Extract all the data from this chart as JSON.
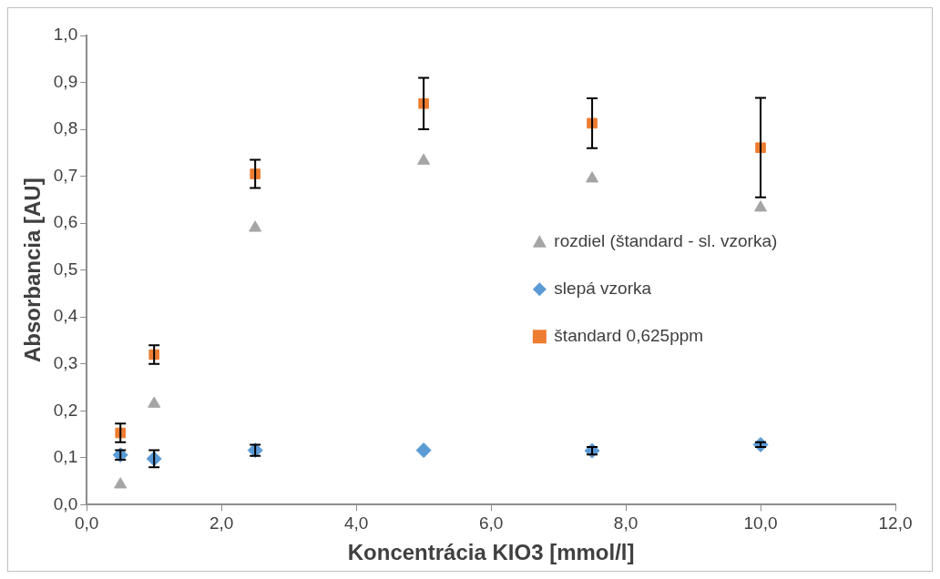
{
  "chart_data": {
    "type": "scatter",
    "xlabel": "Koncentrácia KIO3 [mmol/l]",
    "ylabel": "Absorbancia [AU]",
    "xlim": [
      0,
      12
    ],
    "xticks": [
      {
        "value": 0,
        "label": "0,0"
      },
      {
        "value": 2,
        "label": "2,0"
      },
      {
        "value": 4,
        "label": "4,0"
      },
      {
        "value": 6,
        "label": "6,0"
      },
      {
        "value": 8,
        "label": "8,0"
      },
      {
        "value": 10,
        "label": "10,0"
      },
      {
        "value": 12,
        "label": "12,0"
      }
    ],
    "ylim": [
      0,
      1
    ],
    "yticks": [
      {
        "value": 0,
        "label": "0,0"
      },
      {
        "value": 0.1,
        "label": "0,1"
      },
      {
        "value": 0.2,
        "label": "0,2"
      },
      {
        "value": 0.3,
        "label": "0,3"
      },
      {
        "value": 0.4,
        "label": "0,4"
      },
      {
        "value": 0.5,
        "label": "0,5"
      },
      {
        "value": 0.6,
        "label": "0,6"
      },
      {
        "value": 0.7,
        "label": "0,7"
      },
      {
        "value": 0.8,
        "label": "0,8"
      },
      {
        "value": 0.9,
        "label": "0,9"
      },
      {
        "value": 1,
        "label": "1,0"
      }
    ],
    "grid": false,
    "legend": "right",
    "x": [
      0.5,
      1,
      2.5,
      5,
      7.5,
      10
    ],
    "series": [
      {
        "name": "rozdiel (štandard - sl. vzorka)",
        "color": "#a5a5a5",
        "marker": "triangle",
        "values": [
          0.043,
          0.215,
          0.59,
          0.733,
          0.695,
          0.633
        ]
      },
      {
        "name": "slepá vzorka",
        "color": "#5b9bd5",
        "marker": "diamond",
        "values": [
          0.106,
          0.098,
          0.116,
          0.116,
          0.115,
          0.128
        ],
        "errors": [
          0.01,
          0.018,
          0.012,
          null,
          0.008,
          0.005
        ]
      },
      {
        "name": "štandard 0,625ppm",
        "color": "#ed7d31",
        "marker": "square",
        "values": [
          0.153,
          0.32,
          0.705,
          0.855,
          0.813,
          0.761
        ],
        "errors": [
          0.02,
          0.02,
          0.03,
          0.055,
          0.053,
          0.106
        ]
      }
    ]
  }
}
